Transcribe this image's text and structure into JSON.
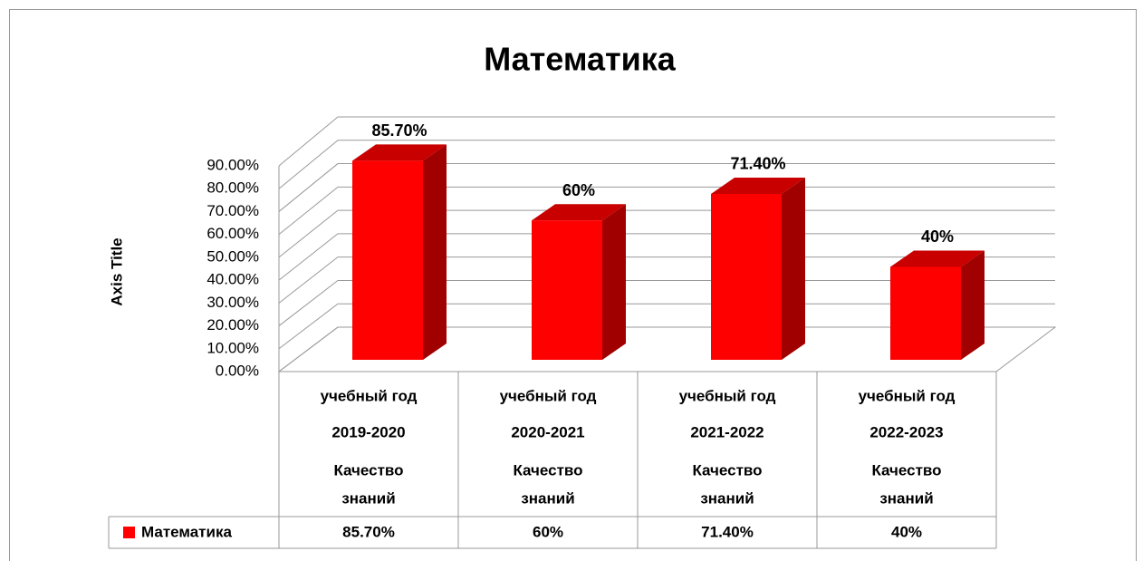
{
  "chart_data": {
    "type": "bar3d",
    "title": "Математика",
    "y_axis_label": "Axis Title",
    "categories": [
      [
        "учебный год",
        "2019-2020",
        "Качество",
        "знаний"
      ],
      [
        "учебный год",
        "2020-2021",
        "Качество",
        "знаний"
      ],
      [
        "учебный год",
        "2021-2022",
        "Качество",
        "знаний"
      ],
      [
        "учебный год",
        "2022-2023",
        "Качество",
        "знаний"
      ]
    ],
    "series": [
      {
        "name": "Математика",
        "color": "#ff0000",
        "values": [
          85.7,
          60,
          71.4,
          40
        ],
        "value_labels": [
          "85.70%",
          "60%",
          "71.40%",
          "40%"
        ]
      }
    ],
    "ylim": [
      0,
      90
    ],
    "yticks": [
      {
        "value": 0,
        "label": "0.00%"
      },
      {
        "value": 10,
        "label": "10.00%"
      },
      {
        "value": 20,
        "label": "20.00%"
      },
      {
        "value": 30,
        "label": "30.00%"
      },
      {
        "value": 40,
        "label": "40.00%"
      },
      {
        "value": 50,
        "label": "50.00%"
      },
      {
        "value": 60,
        "label": "60.00%"
      },
      {
        "value": 70,
        "label": "70.00%"
      },
      {
        "value": 80,
        "label": "80.00%"
      },
      {
        "value": 90,
        "label": "90.00%"
      }
    ],
    "grid": true,
    "data_table": true
  }
}
